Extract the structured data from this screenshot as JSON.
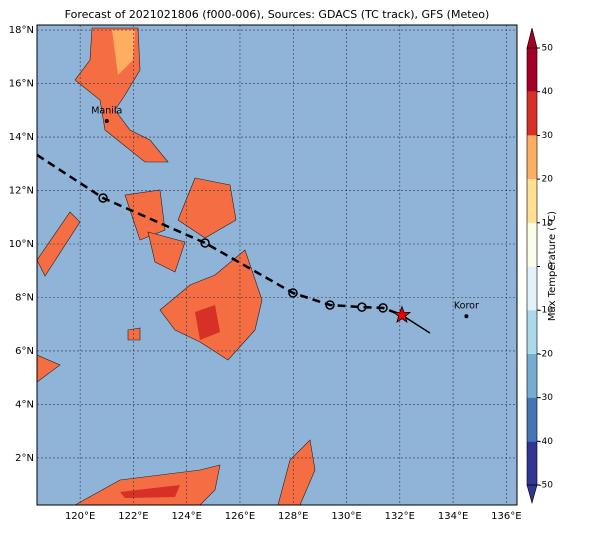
{
  "map": {
    "title": "Forecast of 2021021806 (f000-006), Sources: GDACS (TC track), GFS (Meteo)",
    "lonlim": [
      118.38,
      136.4
    ],
    "latlim": [
      0.24,
      18.19
    ],
    "lonticks": [
      {
        "value": 120,
        "label": "120°E"
      },
      {
        "value": 122,
        "label": "122°E"
      },
      {
        "value": 124,
        "label": "124°E"
      },
      {
        "value": 126,
        "label": "126°E"
      },
      {
        "value": 128,
        "label": "128°E"
      },
      {
        "value": 130,
        "label": "130°E"
      },
      {
        "value": 132,
        "label": "132°E"
      },
      {
        "value": 134,
        "label": "134°E"
      },
      {
        "value": 136,
        "label": "136°E"
      }
    ],
    "latticks": [
      {
        "value": 2,
        "label": "2°N"
      },
      {
        "value": 4,
        "label": "4°N"
      },
      {
        "value": 6,
        "label": "6°N"
      },
      {
        "value": 8,
        "label": "8°N"
      },
      {
        "value": 10,
        "label": "10°N"
      },
      {
        "value": 12,
        "label": "12°N"
      },
      {
        "value": 14,
        "label": "14°N"
      },
      {
        "value": 16,
        "label": "16°N"
      },
      {
        "value": 18,
        "label": "18°N"
      }
    ],
    "grid": true,
    "cities": [
      {
        "name": "Manila",
        "lon": 121.0,
        "lat": 14.6
      },
      {
        "name": "Koror",
        "lon": 134.5,
        "lat": 7.3
      }
    ],
    "track": {
      "lon": [
        118.38,
        120.86,
        124.69,
        127.99,
        129.38,
        130.58,
        131.37,
        132.08,
        133.13
      ],
      "lat": [
        13.33,
        11.72,
        10.04,
        8.17,
        7.72,
        7.64,
        7.61,
        7.34,
        6.67
      ]
    },
    "colorbar": {
      "label": "Max Temperature (°C)",
      "lim": [
        -50,
        50
      ],
      "ticks": [
        -50,
        -40,
        -30,
        -20,
        -10,
        0,
        10,
        20,
        30,
        40,
        50
      ],
      "colors": [
        "#313695",
        "#4575b4",
        "#74add1",
        "#abd9e9",
        "#e0f3f8",
        "#fbfde8",
        "#fee090",
        "#fdae61",
        "#d73027",
        "#a50026"
      ]
    }
  }
}
